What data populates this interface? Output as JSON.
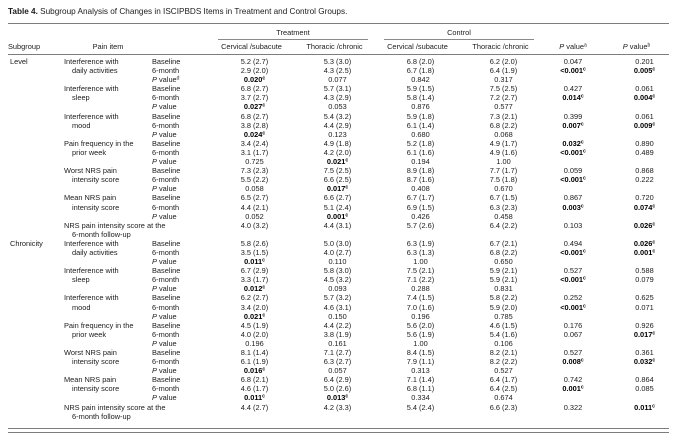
{
  "title": {
    "label": "Table 4.",
    "text": " Subgroup Analysis of Changes in ISCIPBDS Items in Treatment and Control Groups."
  },
  "header": {
    "subgroup": "Subgroup",
    "pain_item": "Pain item",
    "treatment": "Treatment",
    "control": "Control",
    "col_cervical": "Cervical /subacute",
    "col_thoracic": "Thoracic /chronic",
    "p_value_a": {
      "text": "P value",
      "sup": "a"
    },
    "p_value_b": {
      "text": "P value",
      "sup": "b"
    }
  },
  "table": {
    "subgroups": [
      {
        "name": "Level",
        "items": [
          {
            "name_lines": [
              "Interference with",
              "daily activities"
            ],
            "rows": [
              {
                "label": "Baseline",
                "cells": [
                  "5.2 (2.7)",
                  "5.3 (3.0)",
                  "6.8 (2.0)",
                  "6.2 (2.0)",
                  "0.047",
                  "0.201"
                ]
              },
              {
                "label": "6-month",
                "cells": [
                  "2.9 (2.0)",
                  "4.3 (2.5)",
                  "6.7 (1.8)",
                  "6.4 (1.9)",
                  {
                    "t": "<0.001",
                    "b": true,
                    "s": "c"
                  },
                  {
                    "t": "0.005",
                    "b": true,
                    "s": "c"
                  }
                ]
              },
              {
                "label": "P value",
                "label_sup": "d",
                "cells": [
                  {
                    "t": "0.020",
                    "b": true,
                    "s": "c"
                  },
                  "0.077",
                  "0.842",
                  "0.317"
                ]
              }
            ]
          },
          {
            "name_lines": [
              "Interference with",
              "sleep"
            ],
            "rows": [
              {
                "label": "Baseline",
                "cells": [
                  "6.8 (2.7)",
                  "5.7 (3.1)",
                  "5.9 (1.5)",
                  "7.5 (2.5)",
                  "0.427",
                  "0.061"
                ]
              },
              {
                "label": "6-month",
                "cells": [
                  "3.7 (2.7)",
                  "4.3 (2.9)",
                  "5.8 (1.4)",
                  "7.2 (2.7)",
                  {
                    "t": "0.014",
                    "b": true,
                    "s": "c"
                  },
                  {
                    "t": "0.004",
                    "b": true,
                    "s": "c"
                  }
                ]
              },
              {
                "label": "P value",
                "cells": [
                  {
                    "t": "0.027",
                    "b": true,
                    "s": "c"
                  },
                  "0.053",
                  "0.876",
                  "0.577"
                ]
              }
            ]
          },
          {
            "name_lines": [
              "Interference with",
              "mood"
            ],
            "rows": [
              {
                "label": "Baseline",
                "cells": [
                  "6.8 (2.7)",
                  "5.4 (3.2)",
                  "5.9 (1.8)",
                  "7.3 (2.1)",
                  "0.399",
                  "0.061"
                ]
              },
              {
                "label": "6-month",
                "cells": [
                  "3.8 (2.8)",
                  "4.4 (2.9)",
                  "6.1 (1.4)",
                  "6.8 (2.2)",
                  {
                    "t": "0.007",
                    "b": true,
                    "s": "c"
                  },
                  {
                    "t": "0.009",
                    "b": true,
                    "s": "c"
                  }
                ]
              },
              {
                "label": "P value",
                "cells": [
                  {
                    "t": "0.024",
                    "b": true,
                    "s": "c"
                  },
                  "0.123",
                  "0.680",
                  "0.068"
                ]
              }
            ]
          },
          {
            "name_lines": [
              "Pain frequency in the",
              "prior week"
            ],
            "rows": [
              {
                "label": "Baseline",
                "cells": [
                  "3.4 (2.4)",
                  "4.9 (1.8)",
                  "5.2 (1.8)",
                  "4.9 (1.7)",
                  {
                    "t": "0.032",
                    "b": true,
                    "s": "c"
                  },
                  "0.890"
                ]
              },
              {
                "label": "6-month",
                "cells": [
                  "3.1 (1.7)",
                  "4.2 (2.0)",
                  "6.1 (1.6)",
                  "4.9 (1.6)",
                  {
                    "t": "<0.001",
                    "b": true,
                    "s": "c"
                  },
                  "0.489"
                ]
              },
              {
                "label": "P value",
                "cells": [
                  "0.725",
                  {
                    "t": "0.021",
                    "b": true,
                    "s": "c"
                  },
                  "0.194",
                  "1.00"
                ]
              }
            ]
          },
          {
            "name_lines": [
              "Worst NRS pain",
              "intensity score"
            ],
            "rows": [
              {
                "label": "Baseline",
                "cells": [
                  "7.3 (2.3)",
                  "7.5 (2.5)",
                  "8.9 (1.8)",
                  "7.7 (1.7)",
                  "0.059",
                  "0.868"
                ]
              },
              {
                "label": "6-month",
                "cells": [
                  "5.5 (2.2)",
                  "6.6 (2.5)",
                  "8.7 (1.6)",
                  "7.5 (1.8)",
                  {
                    "t": "<0.001",
                    "b": true,
                    "s": "c"
                  },
                  "0.222"
                ]
              },
              {
                "label": "P value",
                "cells": [
                  "0.058",
                  {
                    "t": "0.017",
                    "b": true,
                    "s": "c"
                  },
                  "0.408",
                  "0.670"
                ]
              }
            ]
          },
          {
            "name_lines": [
              "Mean NRS pain",
              "intensity score"
            ],
            "rows": [
              {
                "label": "Baseline",
                "cells": [
                  "6.5 (2.7)",
                  "6.6 (2.7)",
                  "6.7 (1.7)",
                  "6.7 (1.5)",
                  "0.867",
                  "0.720"
                ]
              },
              {
                "label": "6-month",
                "cells": [
                  "4.4 (2.1)",
                  "5.1 (2.4)",
                  "6.9 (1.5)",
                  "6.3 (2.3)",
                  {
                    "t": "0.003",
                    "b": true,
                    "s": "c"
                  },
                  {
                    "t": "0.074",
                    "b": true,
                    "s": "c"
                  }
                ]
              },
              {
                "label": "P value",
                "cells": [
                  "0.052",
                  {
                    "t": "0.001",
                    "b": true,
                    "s": "c"
                  },
                  "0.426",
                  "0.458"
                ]
              }
            ]
          },
          {
            "name_lines": [
              "NRS pain intensity score at the",
              "6-month follow-up"
            ],
            "name_colspan": 2,
            "rows": [
              {
                "label": null,
                "cells": [
                  "4.0 (3.2)",
                  "4.4 (3.1)",
                  "5.7 (2.6)",
                  "6.4 (2.2)",
                  "0.103",
                  {
                    "t": "0.026",
                    "b": true,
                    "s": "c"
                  }
                ]
              }
            ]
          }
        ]
      },
      {
        "name": "Chronicity",
        "items": [
          {
            "name_lines": [
              "Interference with",
              "daily activities"
            ],
            "rows": [
              {
                "label": "Baseline",
                "cells": [
                  "5.8 (2.6)",
                  "5.0 (3.0)",
                  "6.3 (1.9)",
                  "6.7 (2.1)",
                  "0.494",
                  {
                    "t": "0.026",
                    "b": true,
                    "s": "c"
                  }
                ]
              },
              {
                "label": "6-month",
                "cells": [
                  "3.5 (1.5)",
                  "4.0 (2.7)",
                  "6.3 (1.3)",
                  "6.8 (2.2)",
                  {
                    "t": "<0.001",
                    "b": true,
                    "s": "c"
                  },
                  {
                    "t": "0.001",
                    "b": true,
                    "s": "c"
                  }
                ]
              },
              {
                "label": "P value",
                "cells": [
                  {
                    "t": "0.011",
                    "b": true,
                    "s": "c"
                  },
                  "0.110",
                  "1.00",
                  "0.650"
                ]
              }
            ]
          },
          {
            "name_lines": [
              "Interference with",
              "sleep"
            ],
            "rows": [
              {
                "label": "Baseline",
                "cells": [
                  "6.7 (2.9)",
                  "5.8 (3.0)",
                  "7.5 (2.1)",
                  "5.9 (2.1)",
                  "0.527",
                  "0.588"
                ]
              },
              {
                "label": "6-month",
                "cells": [
                  "3.3 (1.7)",
                  "4.5 (3.2)",
                  "7.1 (2.2)",
                  "5.9 (2.1)",
                  {
                    "t": "<0.001",
                    "b": true,
                    "s": "c"
                  },
                  "0.079"
                ]
              },
              {
                "label": "P value",
                "cells": [
                  {
                    "t": "0.012",
                    "b": true,
                    "s": "c"
                  },
                  "0.093",
                  "0.288",
                  "0.831"
                ]
              }
            ]
          },
          {
            "name_lines": [
              "Interference with",
              "mood"
            ],
            "rows": [
              {
                "label": "Baseline",
                "cells": [
                  "6.2 (2.7)",
                  "5.7 (3.2)",
                  "7.4 (1.5)",
                  "5.8 (2.2)",
                  "0.252",
                  "0.625"
                ]
              },
              {
                "label": "6-month",
                "cells": [
                  "3.4 (2.0)",
                  "4.6 (3.1)",
                  "7.0 (1.6)",
                  "5.9 (2.0)",
                  {
                    "t": "<0.001",
                    "b": true,
                    "s": "c"
                  },
                  "0.071"
                ]
              },
              {
                "label": "P value",
                "cells": [
                  {
                    "t": "0.021",
                    "b": true,
                    "s": "c"
                  },
                  "0.150",
                  "0.196",
                  "0.785"
                ]
              }
            ]
          },
          {
            "name_lines": [
              "Pain frequency in the",
              "prior week"
            ],
            "rows": [
              {
                "label": "Baseline",
                "cells": [
                  "4.5 (1.9)",
                  "4.4 (2.2)",
                  "5.6 (2.0)",
                  "4.6 (1.5)",
                  "0.176",
                  "0.926"
                ]
              },
              {
                "label": "6-month",
                "cells": [
                  "4.0 (2.0)",
                  "3.8 (1.9)",
                  "5.6 (1.9)",
                  "5.4 (1.6)",
                  "0.067",
                  {
                    "t": "0.017",
                    "b": true,
                    "s": "c"
                  }
                ]
              },
              {
                "label": "P value",
                "cells": [
                  "0.196",
                  "0.161",
                  "1.00",
                  "0.106"
                ]
              }
            ]
          },
          {
            "name_lines": [
              "Worst NRS pain",
              "intensity score"
            ],
            "rows": [
              {
                "label": "Baseline",
                "cells": [
                  "8.1 (1.4)",
                  "7.1 (2.7)",
                  "8.4 (1.5)",
                  "8.2 (2.1)",
                  "0.527",
                  "0.361"
                ]
              },
              {
                "label": "6-month",
                "cells": [
                  "6.1 (1.9)",
                  "6.3 (2.7)",
                  "7.9 (1.1)",
                  "8.2 (2.2)",
                  {
                    "t": "0.008",
                    "b": true,
                    "s": "c"
                  },
                  {
                    "t": "0.032",
                    "b": true,
                    "s": "c"
                  }
                ]
              },
              {
                "label": "P value",
                "cells": [
                  {
                    "t": "0.016",
                    "b": true,
                    "s": "c"
                  },
                  "0.057",
                  "0.313",
                  "0.527"
                ]
              }
            ]
          },
          {
            "name_lines": [
              "Mean NRS pain",
              "intensity score"
            ],
            "rows": [
              {
                "label": "Baseline",
                "cells": [
                  "6.8 (2.1)",
                  "6.4 (2.9)",
                  "7.1 (1.4)",
                  "6.4 (1.7)",
                  "0.742",
                  "0.864"
                ]
              },
              {
                "label": "6-month",
                "cells": [
                  "4.6 (1.7)",
                  "5.0 (2.6)",
                  "6.8 (1.1)",
                  "6.4 (2.5)",
                  {
                    "t": "0.001",
                    "b": true,
                    "s": "c"
                  },
                  "0.085"
                ]
              },
              {
                "label": "P value",
                "cells": [
                  {
                    "t": "0.011",
                    "b": true,
                    "s": "c"
                  },
                  {
                    "t": "0.013",
                    "b": true,
                    "s": "c"
                  },
                  "0.334",
                  "0.674"
                ]
              }
            ]
          },
          {
            "name_lines": [
              "NRS pain intensity score at the",
              "6-month follow-up"
            ],
            "name_colspan": 2,
            "rows": [
              {
                "label": null,
                "cells": [
                  "4.4 (2.7)",
                  "4.2 (3.3)",
                  "5.4 (2.4)",
                  "6.6 (2.3)",
                  "0.322",
                  {
                    "t": "0.011",
                    "b": true,
                    "s": "c"
                  }
                ]
              }
            ]
          }
        ]
      }
    ]
  }
}
